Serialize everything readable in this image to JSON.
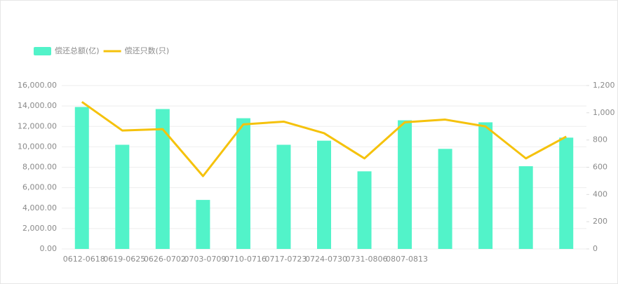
{
  "chart_data": {
    "type": "bar-line",
    "categories": [
      "0612-0618",
      "0619-0625",
      "0626-0702",
      "0703-0709",
      "0710-0716",
      "0717-0723",
      "0724-0730",
      "0731-0806",
      "0807-0813",
      null,
      null,
      null,
      null
    ],
    "series": [
      {
        "name": "偿还总额(亿)",
        "color": "#52f3c9",
        "type": "bar",
        "axis": "y",
        "values": [
          13900,
          10200,
          13700,
          4800,
          12800,
          10200,
          10600,
          7600,
          12600,
          9800,
          12400,
          8100,
          10900
        ]
      },
      {
        "name": "偿还只数(只)",
        "color": "#f5c20c",
        "type": "line",
        "axis": "y2",
        "values": [
          1080,
          870,
          880,
          535,
          915,
          935,
          850,
          665,
          930,
          950,
          900,
          665,
          825
        ]
      }
    ],
    "ylim": [
      0,
      16000
    ],
    "yticks": [
      {
        "value": 0,
        "label": "0.00"
      },
      {
        "value": 2000,
        "label": "2,000.00"
      },
      {
        "value": 4000,
        "label": "4,000.00"
      },
      {
        "value": 6000,
        "label": "6,000.00"
      },
      {
        "value": 8000,
        "label": "8,000.00"
      },
      {
        "value": 10000,
        "label": "10,000.00"
      },
      {
        "value": 12000,
        "label": "12,000.00"
      },
      {
        "value": 14000,
        "label": "14,000.00"
      },
      {
        "value": 16000,
        "label": "16,000.00"
      }
    ],
    "y2lim": [
      0,
      1200
    ],
    "y2ticks": [
      0,
      200,
      400,
      600,
      800,
      {
        "value": 1000,
        "label": "1,000"
      },
      {
        "value": 1200,
        "label": "1,200"
      }
    ],
    "grid": true
  }
}
